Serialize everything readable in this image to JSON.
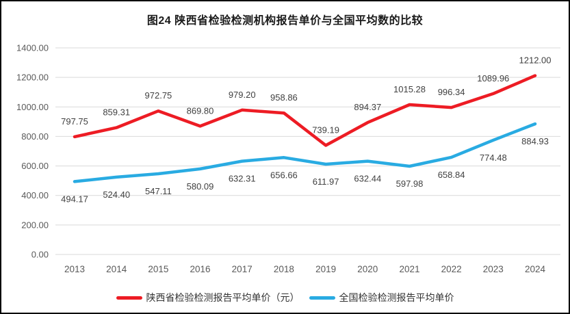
{
  "chart_data": {
    "type": "line",
    "title": "图24 陕西省检验检测机构报告单价与全国平均数的比较",
    "categories": [
      "2013",
      "2014",
      "2015",
      "2016",
      "2017",
      "2018",
      "2019",
      "2020",
      "2021",
      "2022",
      "2023",
      "2024"
    ],
    "series": [
      {
        "name": "陕西省检验检测报告平均单价（元）",
        "color": "#ed1c24",
        "label_position": "above",
        "values": [
          797.75,
          859.31,
          972.75,
          869.8,
          979.2,
          958.86,
          739.19,
          894.37,
          1015.28,
          996.34,
          1089.96,
          1212.0
        ]
      },
      {
        "name": "全国检验检测报告平均单价",
        "color": "#29abe2",
        "label_position": "below",
        "values": [
          494.17,
          524.4,
          547.11,
          580.09,
          632.31,
          656.66,
          611.97,
          632.44,
          597.98,
          658.84,
          774.48,
          884.93
        ]
      }
    ],
    "ylim": [
      0,
      1400
    ],
    "ytick_values": [
      0,
      200,
      400,
      600,
      800,
      1000,
      1200,
      1400
    ],
    "ytick_labels": [
      "0.00",
      "200.00",
      "400.00",
      "600.00",
      "800.00",
      "1000.00",
      "1200.00",
      "1400.00"
    ],
    "grid": true,
    "legend_position": "bottom",
    "data_labels_shown": true,
    "label_decimals": 2
  },
  "style": {
    "border_color": "#000000",
    "background": "#ffffff",
    "grid_color": "#d9d9d9",
    "axis_text_color": "#595959",
    "label_text_color": "#404040",
    "title_color": "#1a1a1a"
  }
}
